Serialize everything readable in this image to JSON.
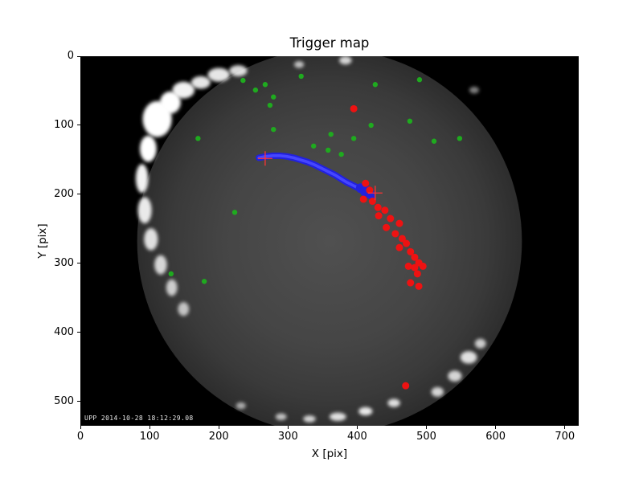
{
  "chart_data": {
    "type": "scatter",
    "title": "Trigger map",
    "xlabel": "X [pix]",
    "ylabel": "Y [pix]",
    "xlim": [
      0,
      720
    ],
    "ylim": [
      0,
      535
    ],
    "y_inverted": true,
    "x_ticks": [
      0,
      100,
      200,
      300,
      400,
      500,
      600,
      700
    ],
    "y_ticks": [
      0,
      100,
      200,
      300,
      400,
      500
    ],
    "grid": false,
    "legend": "none",
    "overlay_text": "UPP 2014-10-28 18:12:29.08",
    "colors": {
      "figure_background": "#ffffff",
      "image_background": "#000000",
      "sky_center": "#505050",
      "sky_edge": "#2d2d2d",
      "green_points": "#1faa1f",
      "red_points": "#ee1212",
      "blue_track": "#2121dd",
      "cross_marker": "#ff3333",
      "clouds": "#ffffff",
      "text": "#000000"
    },
    "background_image": {
      "description": "all-sky fisheye camera frame",
      "circle_center": [
        360,
        268
      ],
      "circle_radius": 278,
      "white_blobs": [
        [
          111,
          91,
          21,
          26,
          1
        ],
        [
          130,
          67,
          15,
          16,
          1
        ],
        [
          149,
          49,
          16,
          12,
          0.95
        ],
        [
          174,
          38,
          14,
          9,
          0.9
        ],
        [
          200,
          27,
          16,
          10,
          0.9
        ],
        [
          228,
          21,
          13,
          8,
          0.85
        ],
        [
          98,
          134,
          12,
          19,
          1
        ],
        [
          89,
          177,
          9,
          21,
          0.95
        ],
        [
          93,
          223,
          10,
          19,
          0.9
        ],
        [
          102,
          265,
          10,
          16,
          0.85
        ],
        [
          116,
          302,
          9,
          14,
          0.8
        ],
        [
          132,
          335,
          8,
          12,
          0.75
        ],
        [
          149,
          366,
          8,
          10,
          0.7
        ],
        [
          316,
          12,
          7,
          5,
          0.7
        ],
        [
          383,
          6,
          9,
          6,
          0.8
        ],
        [
          569,
          49,
          7,
          5,
          0.5
        ],
        [
          561,
          436,
          12,
          9,
          0.85
        ],
        [
          578,
          416,
          8,
          7,
          0.75
        ],
        [
          541,
          463,
          10,
          8,
          0.8
        ],
        [
          516,
          486,
          9,
          7,
          0.8
        ],
        [
          453,
          502,
          9,
          6,
          0.85
        ],
        [
          412,
          514,
          10,
          6,
          0.9
        ],
        [
          372,
          522,
          12,
          6,
          0.85
        ],
        [
          331,
          525,
          9,
          5,
          0.8
        ],
        [
          290,
          522,
          8,
          5,
          0.7
        ],
        [
          232,
          506,
          7,
          5,
          0.6
        ]
      ]
    },
    "series": [
      {
        "name": "star-positions",
        "marker": "circle",
        "color": "#1faa1f",
        "size": 3.2,
        "points": [
          [
            267,
            41
          ],
          [
            235,
            35
          ],
          [
            253,
            49
          ],
          [
            279,
            59
          ],
          [
            274,
            71
          ],
          [
            319,
            29
          ],
          [
            426,
            41
          ],
          [
            490,
            34
          ],
          [
            170,
            119
          ],
          [
            279,
            106
          ],
          [
            362,
            113
          ],
          [
            395,
            119
          ],
          [
            420,
            100
          ],
          [
            476,
            94
          ],
          [
            511,
            123
          ],
          [
            548,
            119
          ],
          [
            337,
            130
          ],
          [
            358,
            136
          ],
          [
            377,
            142
          ],
          [
            223,
            226
          ],
          [
            179,
            326
          ],
          [
            131,
            315
          ]
        ]
      },
      {
        "name": "meteor-track",
        "marker": "line",
        "color": "#2121dd",
        "width": 8,
        "points": [
          [
            258,
            147
          ],
          [
            268,
            145
          ],
          [
            278,
            144
          ],
          [
            288,
            144
          ],
          [
            298,
            145
          ],
          [
            308,
            147
          ],
          [
            318,
            150
          ],
          [
            328,
            153
          ],
          [
            338,
            157
          ],
          [
            348,
            162
          ],
          [
            358,
            167
          ],
          [
            368,
            172
          ],
          [
            376,
            177
          ],
          [
            384,
            182
          ],
          [
            392,
            186
          ],
          [
            400,
            190
          ],
          [
            408,
            193
          ],
          [
            414,
            196
          ],
          [
            420,
            198
          ]
        ],
        "blob_points": [
          [
            405,
            191,
            6
          ],
          [
            412,
            195,
            7
          ],
          [
            418,
            199,
            6
          ],
          [
            421,
            204,
            4
          ]
        ]
      },
      {
        "name": "trigger-detections",
        "marker": "circle",
        "color": "#ee1212",
        "size": 4.5,
        "points": [
          [
            412,
            184
          ],
          [
            418,
            194
          ],
          [
            409,
            207
          ],
          [
            422,
            210
          ],
          [
            430,
            219
          ],
          [
            440,
            223
          ],
          [
            431,
            231
          ],
          [
            448,
            235
          ],
          [
            461,
            242
          ],
          [
            442,
            248
          ],
          [
            455,
            257
          ],
          [
            465,
            264
          ],
          [
            471,
            271
          ],
          [
            461,
            277
          ],
          [
            477,
            283
          ],
          [
            483,
            291
          ],
          [
            489,
            299
          ],
          [
            474,
            304
          ],
          [
            483,
            306
          ],
          [
            495,
            304
          ],
          [
            487,
            315
          ],
          [
            477,
            328
          ],
          [
            489,
            333
          ],
          [
            395,
            76
          ],
          [
            470,
            477
          ]
        ]
      },
      {
        "name": "track-endpoints",
        "marker": "plus",
        "color": "#ff3333",
        "size": 18,
        "points": [
          [
            267,
            148
          ],
          [
            426,
            198
          ]
        ]
      }
    ]
  }
}
